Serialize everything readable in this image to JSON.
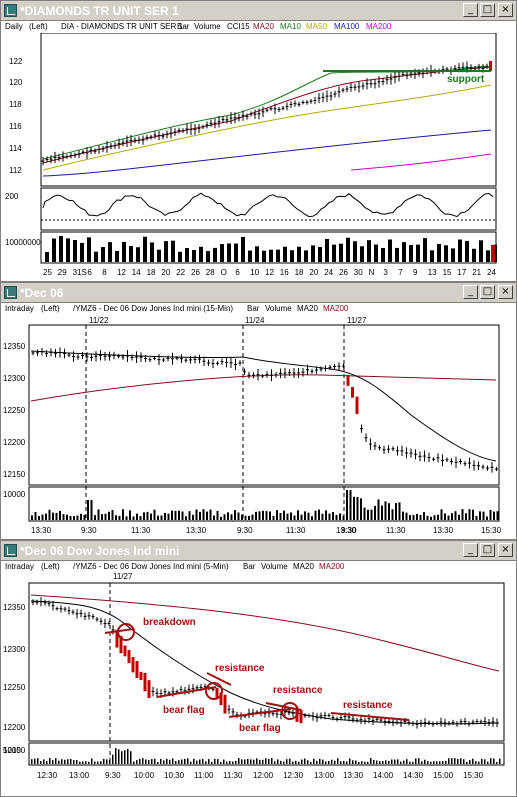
{
  "colors": {
    "title_text": "#ffffff",
    "ma20": "#000000",
    "ma10": "#1a7a1a",
    "ma50": "#b8a800",
    "ma100": "#1a1aa0",
    "ma200_daily": "#cc00cc",
    "ma200_intraday": "#8b0a1a",
    "annotation": "#a01010",
    "support": "#1a7a1a"
  },
  "windows": [
    {
      "title": "*DIAMONDS TR UNIT SER 1",
      "header": {
        "period": "Daily",
        "scale": "(Left)",
        "symbol_desc": "DIA - DIAMONDS TR UNIT SER 1",
        "bar": "Bar",
        "volume": "Volume",
        "indicator": "CCI15",
        "ma20": "MA20",
        "ma10": "MA10",
        "ma50": "MA50",
        "ma100": "MA100",
        "ma200": "MA200"
      },
      "price_ticks": [
        "122",
        "120",
        "118",
        "116",
        "114",
        "112"
      ],
      "cci_tick": "200",
      "volume_tick": "10000000",
      "x_ticks": [
        "25",
        "29",
        "31S",
        "6",
        "8",
        "12",
        "14",
        "18",
        "20",
        "22",
        "26",
        "28",
        "O",
        "6",
        "10",
        "12",
        "16",
        "18",
        "20",
        "24",
        "26",
        "30",
        "N",
        "3",
        "7",
        "9",
        "13",
        "15",
        "17",
        "21",
        "24"
      ],
      "annotation": "support"
    },
    {
      "title": "*Dec 06",
      "header": {
        "period": "Intraday",
        "scale": "(Left)",
        "symbol_desc": "/YMZ6 - Dec 06  Dow Jones Ind mini  (15-Min)",
        "bar": "Bar",
        "volume": "Volume",
        "ma20": "MA20",
        "ma200": "MA200"
      },
      "date_markers": [
        "11/22",
        "11/24",
        "11/27"
      ],
      "price_ticks": [
        "12350",
        "12300",
        "12250",
        "12200",
        "12150"
      ],
      "volume_tick": "10000",
      "x_ticks": [
        "13:30",
        "9:30",
        "11:30",
        "13:30",
        "9:30",
        "11:30",
        "13:30",
        "9:30",
        "11:30",
        "13:30",
        "15:30"
      ]
    },
    {
      "title": "*Dec 06  Dow Jones Ind mini",
      "header": {
        "period": "Intraday",
        "scale": "(Left)",
        "symbol_desc": "/YMZ6 - Dec 06  Dow Jones Ind mini  (5-Min)",
        "bar": "Bar",
        "volume": "Volume",
        "ma20": "MA20",
        "ma200": "MA200"
      },
      "date_marker": "11/27",
      "price_ticks": [
        "12350",
        "12300",
        "12250",
        "12200",
        "12150"
      ],
      "volume_tick": "5000",
      "x_ticks": [
        "12:30",
        "13:00",
        "9:30",
        "10:00",
        "10:30",
        "11:00",
        "11:30",
        "12:00",
        "12:30",
        "13:00",
        "13:30",
        "14:00",
        "14:30",
        "15:00",
        "15:30"
      ],
      "annotations": {
        "breakdown": "breakdown",
        "resistance_1": "resistance",
        "resistance_2": "resistance",
        "resistance_3": "resistance",
        "bear_flag_1": "bear flag",
        "bear_flag_2": "bear flag"
      }
    }
  ]
}
